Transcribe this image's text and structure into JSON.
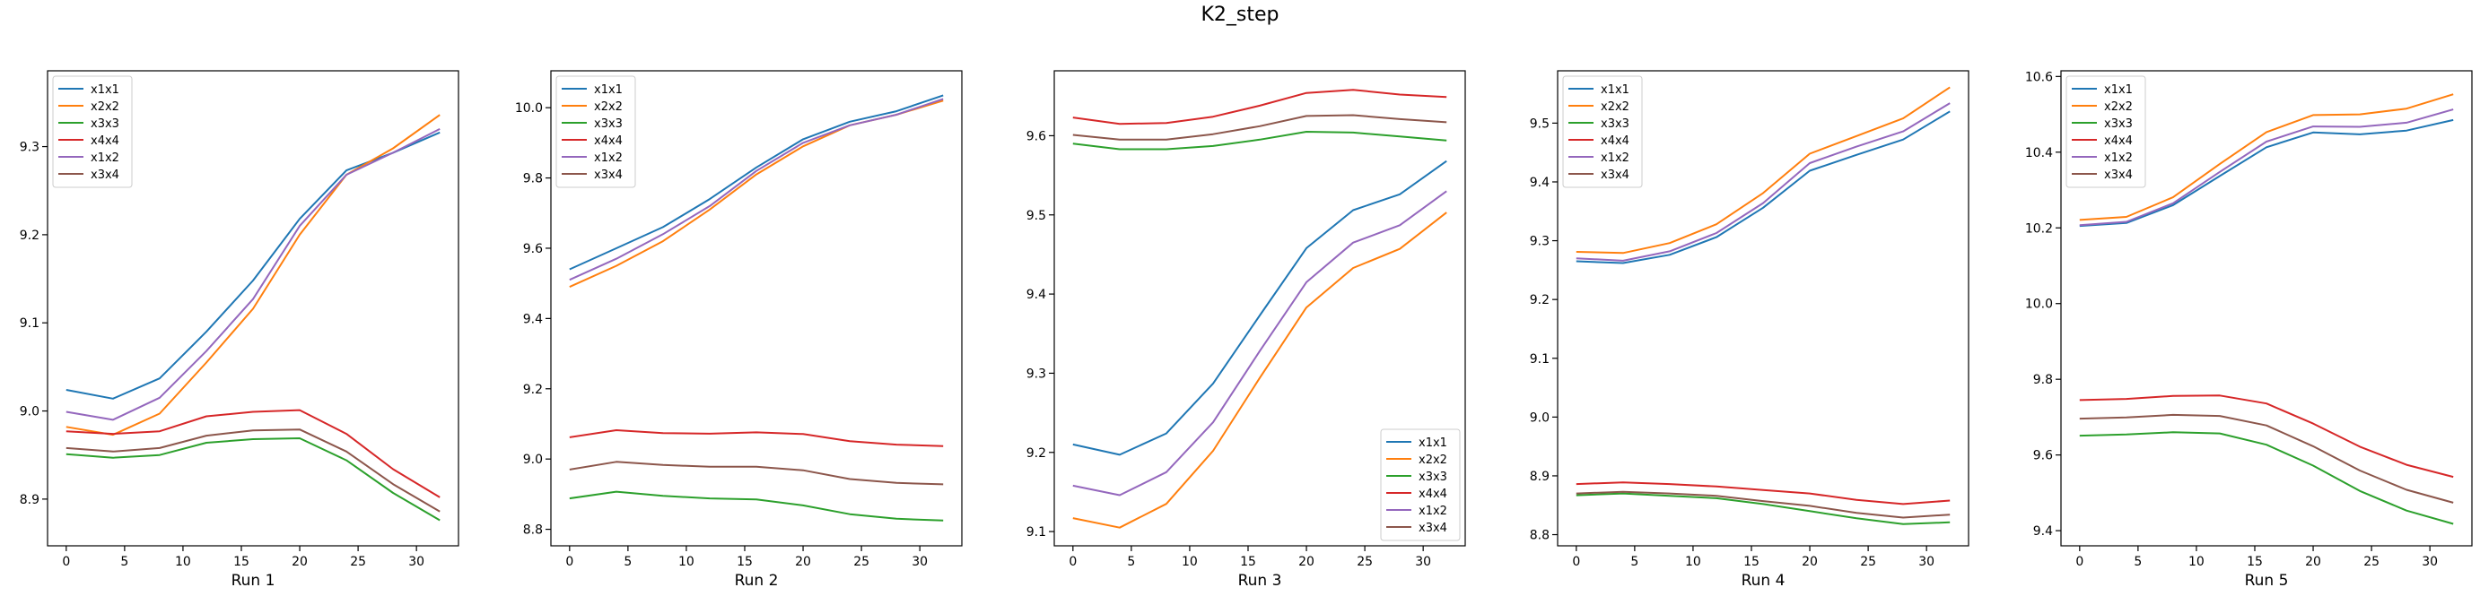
{
  "figure": {
    "title": "K2_step"
  },
  "colors": {
    "x1x1": "#1f77b4",
    "x2x2": "#ff7f0e",
    "x3x3": "#2ca02c",
    "x4x4": "#d62728",
    "x1x2": "#9467bd",
    "x3x4": "#8c564b"
  },
  "chart_data": [
    {
      "type": "line",
      "xlabel": "Run 1",
      "x": [
        0,
        4,
        8,
        12,
        16,
        20,
        24,
        28,
        32
      ],
      "xlim": [
        -1.6,
        33.6
      ],
      "ylim": [
        8.847,
        9.386
      ],
      "xticks": [
        0,
        5,
        10,
        15,
        20,
        25,
        30
      ],
      "yticks": [
        8.9,
        9.0,
        9.1,
        9.2,
        9.3
      ],
      "ytick_labels": [
        "8.9",
        "9.0",
        "9.1",
        "9.2",
        "9.3"
      ],
      "legend": "top-left",
      "series": [
        {
          "name": "x1x1",
          "values": [
            9.024,
            9.014,
            9.037,
            9.09,
            9.148,
            9.218,
            9.273,
            9.293,
            9.316
          ]
        },
        {
          "name": "x2x2",
          "values": [
            8.982,
            8.973,
            8.997,
            9.055,
            9.116,
            9.2,
            9.268,
            9.298,
            9.336
          ]
        },
        {
          "name": "x3x3",
          "values": [
            8.951,
            8.947,
            8.95,
            8.964,
            8.968,
            8.969,
            8.944,
            8.907,
            8.876
          ]
        },
        {
          "name": "x4x4",
          "values": [
            8.977,
            8.974,
            8.977,
            8.994,
            8.999,
            9.001,
            8.974,
            8.934,
            8.902
          ]
        },
        {
          "name": "x1x2",
          "values": [
            8.999,
            8.99,
            9.015,
            9.068,
            9.127,
            9.21,
            9.268,
            9.293,
            9.32
          ]
        },
        {
          "name": "x3x4",
          "values": [
            8.958,
            8.954,
            8.958,
            8.972,
            8.978,
            8.979,
            8.954,
            8.917,
            8.886
          ]
        }
      ]
    },
    {
      "type": "line",
      "xlabel": "Run 2",
      "x": [
        0,
        4,
        8,
        12,
        16,
        20,
        24,
        28,
        32
      ],
      "xlim": [
        -1.6,
        33.6
      ],
      "ylim": [
        8.753,
        10.105
      ],
      "xticks": [
        0,
        5,
        10,
        15,
        20,
        25,
        30
      ],
      "yticks": [
        8.8,
        9.0,
        9.2,
        9.4,
        9.6,
        9.8,
        10.0
      ],
      "ytick_labels": [
        "8.8",
        "9.0",
        "9.2",
        "9.4",
        "9.6",
        "9.8",
        "10.0"
      ],
      "legend": "top-left",
      "series": [
        {
          "name": "x1x1",
          "values": [
            9.54,
            9.6,
            9.66,
            9.74,
            9.83,
            9.91,
            9.96,
            9.99,
            10.035
          ]
        },
        {
          "name": "x2x2",
          "values": [
            9.49,
            9.55,
            9.62,
            9.71,
            9.81,
            9.89,
            9.95,
            9.98,
            10.02
          ]
        },
        {
          "name": "x3x3",
          "values": [
            8.888,
            8.907,
            8.895,
            8.888,
            8.885,
            8.868,
            8.843,
            8.83,
            8.825
          ]
        },
        {
          "name": "x4x4",
          "values": [
            9.062,
            9.082,
            9.074,
            9.072,
            9.076,
            9.071,
            9.051,
            9.041,
            9.037
          ]
        },
        {
          "name": "x1x2",
          "values": [
            9.51,
            9.57,
            9.64,
            9.72,
            9.82,
            9.9,
            9.95,
            9.98,
            10.025
          ]
        },
        {
          "name": "x3x4",
          "values": [
            8.97,
            8.992,
            8.983,
            8.978,
            8.978,
            8.968,
            8.943,
            8.932,
            8.928
          ]
        }
      ]
    },
    {
      "type": "line",
      "xlabel": "Run 3",
      "x": [
        0,
        4,
        8,
        12,
        16,
        20,
        24,
        28,
        32
      ],
      "xlim": [
        -1.6,
        33.6
      ],
      "ylim": [
        9.082,
        9.682
      ],
      "xticks": [
        0,
        5,
        10,
        15,
        20,
        25,
        30
      ],
      "yticks": [
        9.1,
        9.2,
        9.3,
        9.4,
        9.5,
        9.6
      ],
      "ytick_labels": [
        "9.1",
        "9.2",
        "9.3",
        "9.4",
        "9.5",
        "9.6"
      ],
      "legend": "bottom-right",
      "series": [
        {
          "name": "x1x1",
          "values": [
            9.21,
            9.197,
            9.224,
            9.287,
            9.373,
            9.458,
            9.506,
            9.526,
            9.568
          ]
        },
        {
          "name": "x2x2",
          "values": [
            9.117,
            9.105,
            9.135,
            9.202,
            9.294,
            9.383,
            9.433,
            9.457,
            9.503
          ]
        },
        {
          "name": "x3x3",
          "values": [
            9.59,
            9.583,
            9.583,
            9.587,
            9.595,
            9.605,
            9.604,
            9.599,
            9.594
          ]
        },
        {
          "name": "x4x4",
          "values": [
            9.623,
            9.615,
            9.616,
            9.624,
            9.638,
            9.654,
            9.658,
            9.652,
            9.649
          ]
        },
        {
          "name": "x1x2",
          "values": [
            9.158,
            9.146,
            9.175,
            9.238,
            9.328,
            9.415,
            9.465,
            9.487,
            9.53
          ]
        },
        {
          "name": "x3x4",
          "values": [
            9.601,
            9.595,
            9.595,
            9.602,
            9.612,
            9.625,
            9.626,
            9.621,
            9.617
          ]
        }
      ]
    },
    {
      "type": "line",
      "xlabel": "Run 4",
      "x": [
        0,
        4,
        8,
        12,
        16,
        20,
        24,
        28,
        32
      ],
      "xlim": [
        -1.6,
        33.6
      ],
      "ylim": [
        8.781,
        9.589
      ],
      "xticks": [
        0,
        5,
        10,
        15,
        20,
        25,
        30
      ],
      "yticks": [
        8.8,
        8.9,
        9.0,
        9.1,
        9.2,
        9.3,
        9.4,
        9.5
      ],
      "ytick_labels": [
        "8.8",
        "8.9",
        "9.0",
        "9.1",
        "9.2",
        "9.3",
        "9.4",
        "9.5"
      ],
      "legend": "top-left",
      "series": [
        {
          "name": "x1x1",
          "values": [
            9.265,
            9.262,
            9.276,
            9.306,
            9.356,
            9.419,
            9.446,
            9.472,
            9.52
          ]
        },
        {
          "name": "x2x2",
          "values": [
            9.281,
            9.279,
            9.296,
            9.328,
            9.381,
            9.448,
            9.478,
            9.508,
            9.561
          ]
        },
        {
          "name": "x3x3",
          "values": [
            8.867,
            8.87,
            8.866,
            8.862,
            8.852,
            8.84,
            8.828,
            8.818,
            8.821
          ]
        },
        {
          "name": "x4x4",
          "values": [
            8.886,
            8.889,
            8.886,
            8.882,
            8.876,
            8.87,
            8.859,
            8.852,
            8.858
          ]
        },
        {
          "name": "x1x2",
          "values": [
            9.27,
            9.266,
            9.282,
            9.313,
            9.364,
            9.432,
            9.46,
            9.486,
            9.534
          ]
        },
        {
          "name": "x3x4",
          "values": [
            8.87,
            8.873,
            8.87,
            8.866,
            8.857,
            8.849,
            8.837,
            8.829,
            8.834
          ]
        }
      ]
    },
    {
      "type": "line",
      "xlabel": "Run 5",
      "x": [
        0,
        4,
        8,
        12,
        16,
        20,
        24,
        28,
        32
      ],
      "xlim": [
        -1.6,
        33.6
      ],
      "ylim": [
        9.36,
        10.615
      ],
      "xticks": [
        0,
        5,
        10,
        15,
        20,
        25,
        30
      ],
      "yticks": [
        9.4,
        9.6,
        9.8,
        10.0,
        10.2,
        10.4,
        10.6
      ],
      "ytick_labels": [
        "9.4",
        "9.6",
        "9.8",
        "10.0",
        "10.2",
        "10.4",
        "10.6"
      ],
      "legend": "top-left",
      "series": [
        {
          "name": "x1x1",
          "values": [
            10.205,
            10.213,
            10.26,
            10.337,
            10.413,
            10.452,
            10.447,
            10.457,
            10.485
          ]
        },
        {
          "name": "x2x2",
          "values": [
            10.221,
            10.229,
            10.281,
            10.369,
            10.453,
            10.498,
            10.5,
            10.515,
            10.553
          ]
        },
        {
          "name": "x3x3",
          "values": [
            9.651,
            9.654,
            9.66,
            9.657,
            9.627,
            9.572,
            9.505,
            9.453,
            9.418
          ]
        },
        {
          "name": "x4x4",
          "values": [
            9.745,
            9.748,
            9.756,
            9.757,
            9.736,
            9.683,
            9.622,
            9.574,
            9.542
          ]
        },
        {
          "name": "x1x2",
          "values": [
            10.207,
            10.216,
            10.265,
            10.348,
            10.428,
            10.468,
            10.467,
            10.478,
            10.513
          ]
        },
        {
          "name": "x3x4",
          "values": [
            9.696,
            9.699,
            9.706,
            9.703,
            9.678,
            9.623,
            9.559,
            9.508,
            9.474
          ]
        }
      ]
    }
  ]
}
